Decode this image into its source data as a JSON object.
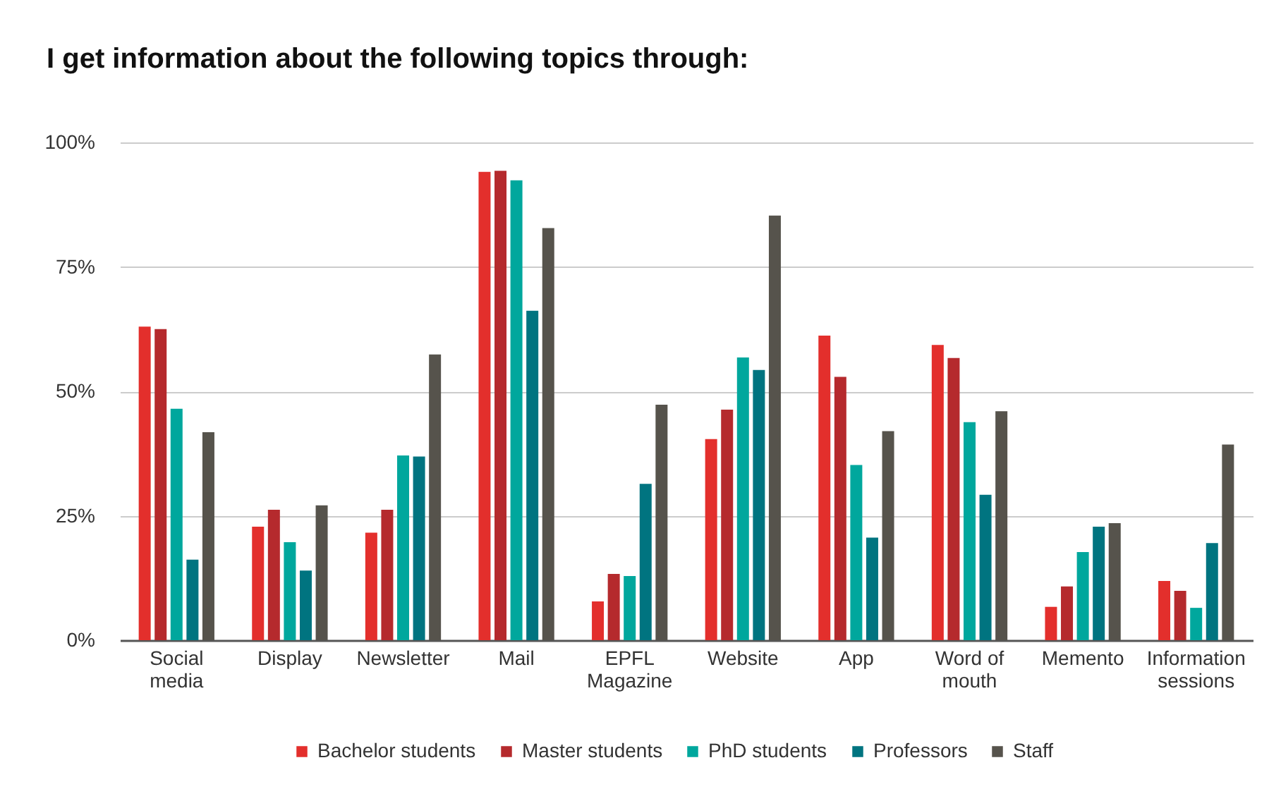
{
  "chart_data": {
    "type": "bar",
    "title": "I get information about the following topics through:",
    "categories": [
      "Social media",
      "Display",
      "Newsletter",
      "Mail",
      "EPFL Magazine",
      "Website",
      "App",
      "Word of mouth",
      "Memento",
      "Information sessions"
    ],
    "series": [
      {
        "name": "Bachelor students",
        "color": "#e32f2c",
        "values": [
          63.0,
          22.8,
          21.6,
          94.1,
          7.8,
          40.4,
          61.2,
          59.3,
          6.7,
          11.9
        ]
      },
      {
        "name": "Master students",
        "color": "#b52a2d",
        "values": [
          62.5,
          26.2,
          26.2,
          94.3,
          13.3,
          46.3,
          52.9,
          56.7,
          10.8,
          9.9
        ]
      },
      {
        "name": "PhD students",
        "color": "#00a79d",
        "values": [
          46.5,
          19.7,
          37.1,
          92.4,
          12.9,
          56.8,
          35.2,
          43.8,
          17.7,
          6.5
        ]
      },
      {
        "name": "Professors",
        "color": "#007480",
        "values": [
          16.2,
          14.0,
          36.9,
          66.2,
          31.4,
          54.3,
          20.6,
          29.2,
          22.8,
          19.5
        ]
      },
      {
        "name": "Staff",
        "color": "#56534c",
        "values": [
          41.8,
          27.1,
          57.4,
          82.8,
          47.3,
          85.3,
          42.0,
          46.0,
          23.5,
          39.3
        ]
      }
    ],
    "ylim": [
      0,
      100
    ],
    "yticks": [
      {
        "value": 0,
        "label": "0%"
      },
      {
        "value": 25,
        "label": "25%"
      },
      {
        "value": 50,
        "label": "50%"
      },
      {
        "value": 75,
        "label": "75%"
      },
      {
        "value": 100,
        "label": "100%"
      }
    ],
    "grid": "y",
    "legend": "bottom"
  }
}
